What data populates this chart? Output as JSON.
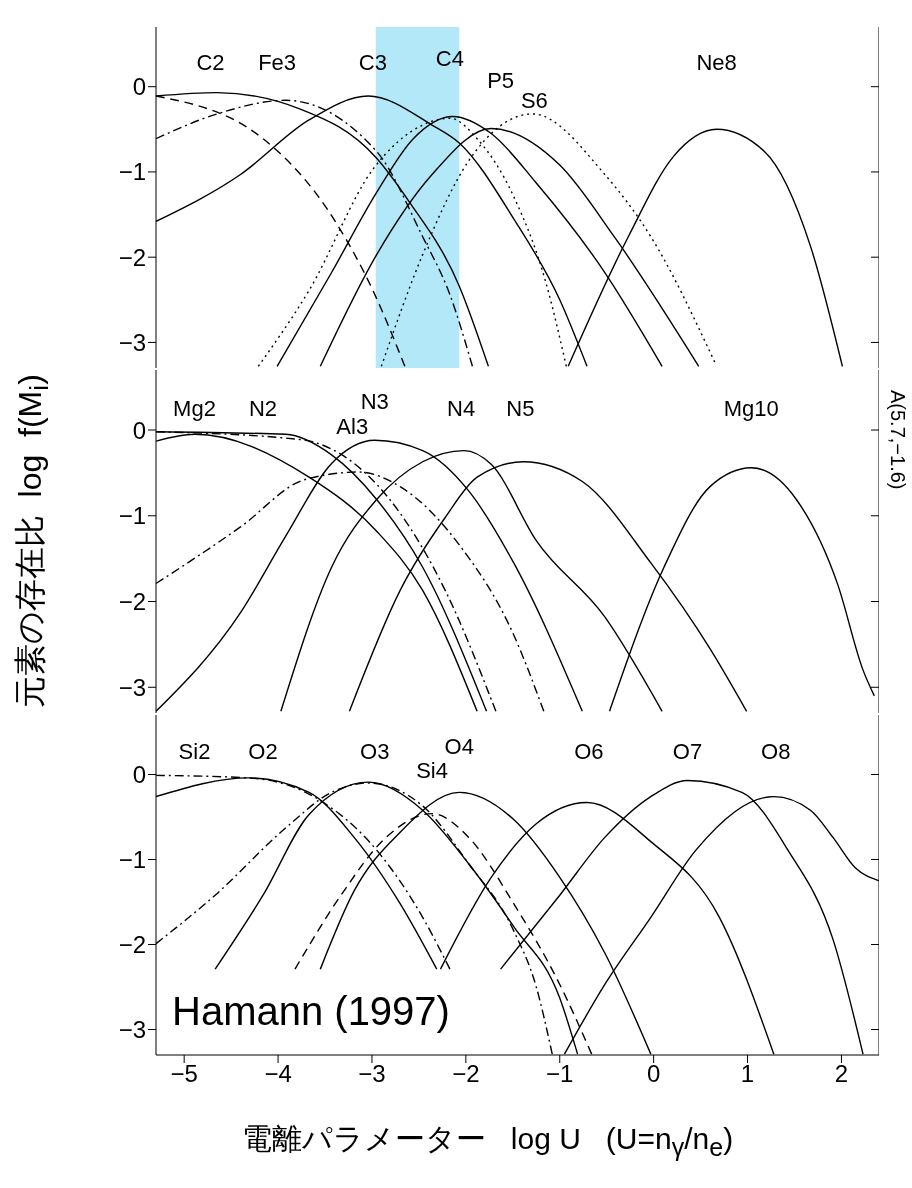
{
  "chart_data": [
    {
      "type": "line",
      "xlim": [
        -5.3,
        2.4
      ],
      "ylim": [
        -3.3,
        0.7
      ],
      "xticks": [
        -5,
        -4,
        -3,
        -2,
        -1,
        0,
        1,
        2
      ],
      "yticks": [
        -3,
        -2,
        -1,
        0
      ],
      "tick_labels": "y",
      "bands": [
        {
          "axis": "x",
          "from": -2.96,
          "to": -2.07,
          "color": "#b3e8f8"
        }
      ],
      "annotations": [
        "C2",
        "Fe3",
        "C3",
        "C4",
        "P5",
        "S6",
        "Ne8"
      ],
      "series": [
        {
          "color": "#000000",
          "line_style": "solid",
          "x": [
            -5.3,
            -4.65,
            -3.77,
            -2.95,
            -2.61,
            -2.07,
            -1.76
          ],
          "values": [
            -0.11,
            -0.07,
            -0.26,
            -0.84,
            -1.34,
            -2.34,
            -3.28
          ]
        },
        {
          "color": "#000000",
          "line_style": "dashed",
          "x": [
            -5.3,
            -4.16,
            -3.38,
            -2.99,
            -2.65
          ],
          "values": [
            -0.11,
            -0.61,
            -1.6,
            -2.39,
            -3.28
          ]
        },
        {
          "color": "#000000",
          "line_style": "dashdot",
          "x": [
            -5.3,
            -4.65,
            -3.92,
            -2.95,
            -2.46,
            -2.17,
            -1.93
          ],
          "values": [
            -0.61,
            -0.32,
            -0.16,
            -0.76,
            -1.76,
            -2.44,
            -3.28
          ]
        },
        {
          "color": "#000000",
          "line_style": "solid",
          "x": [
            -5.3,
            -4.4,
            -3.67,
            -3.04,
            -2.36,
            -2.07,
            -1.49,
            -1.0,
            -0.71
          ],
          "values": [
            -1.58,
            -1.03,
            -0.39,
            -0.11,
            -0.45,
            -0.66,
            -1.55,
            -2.5,
            -3.28
          ]
        },
        {
          "color": "#000000",
          "line_style": "dotted",
          "x": [
            -4.21,
            -3.67,
            -2.99,
            -2.46,
            -2.17,
            -1.88,
            -1.49,
            -1.15,
            -0.93
          ],
          "values": [
            -3.28,
            -2.39,
            -0.97,
            -0.45,
            -0.37,
            -0.61,
            -1.29,
            -2.29,
            -3.28
          ]
        },
        {
          "color": "#000000",
          "line_style": "solid",
          "x": [
            -4.01,
            -3.43,
            -2.95,
            -2.56,
            -2.14,
            -1.73,
            -1.25,
            -0.52,
            0.09
          ],
          "values": [
            -3.28,
            -2.18,
            -1.24,
            -0.61,
            -0.35,
            -0.55,
            -1.13,
            -2.18,
            -3.28
          ]
        },
        {
          "color": "#000000",
          "line_style": "solid",
          "x": [
            -3.55,
            -2.95,
            -2.36,
            -1.73,
            -1.0,
            -0.42,
            0.48
          ],
          "values": [
            -3.28,
            -1.97,
            -1.03,
            -0.49,
            -0.92,
            -1.76,
            -3.28
          ]
        },
        {
          "color": "#000000",
          "line_style": "dotted",
          "x": [
            -2.9,
            -2.46,
            -1.97,
            -1.29,
            -0.52,
            -0.03,
            0.65
          ],
          "values": [
            -3.28,
            -1.97,
            -0.87,
            -0.32,
            -1.03,
            -1.76,
            -3.23
          ]
        },
        {
          "color": "#000000",
          "line_style": "solid",
          "x": [
            -0.91,
            -0.27,
            0.21,
            0.67,
            1.18,
            1.67,
            2.01
          ],
          "values": [
            -3.28,
            -1.76,
            -0.82,
            -0.5,
            -0.76,
            -1.87,
            -3.28
          ]
        }
      ]
    },
    {
      "type": "line",
      "xlim": [
        -5.3,
        2.4
      ],
      "ylim": [
        -3.3,
        0.7
      ],
      "xticks": [
        -5,
        -4,
        -3,
        -2,
        -1,
        0,
        1,
        2
      ],
      "yticks": [
        -3,
        -2,
        -1,
        0
      ],
      "tick_labels": "y",
      "ylabel": "元素の存在比  log  f(M$_{i}$)",
      "annotations": [
        "Mg2",
        "N2",
        "N3",
        "Al3",
        "N4",
        "N5",
        "Mg10",
        "A(5.7,−1.6)"
      ],
      "series": [
        {
          "color": "#000000",
          "line_style": "solid",
          "x": [
            -5.3,
            -4.89,
            -3.67,
            -2.95,
            -2.46,
            -1.88
          ],
          "values": [
            -0.13,
            -0.05,
            -0.55,
            -1.18,
            -1.87,
            -3.28
          ]
        },
        {
          "color": "#000000",
          "line_style": "solid",
          "x": [
            -5.3,
            -3.92,
            -3.43,
            -2.95,
            -2.46,
            -1.78
          ],
          "values": [
            -0.02,
            -0.05,
            -0.29,
            -0.81,
            -1.6,
            -3.28
          ]
        },
        {
          "color": "#000000",
          "line_style": "dashdot",
          "x": [
            -5.3,
            -3.77,
            -3.19,
            -2.7,
            -2.22,
            -1.68
          ],
          "values": [
            -0.02,
            -0.11,
            -0.39,
            -0.97,
            -1.87,
            -3.28
          ]
        },
        {
          "color": "#000000",
          "line_style": "dashdot",
          "x": [
            -5.3,
            -4.4,
            -3.72,
            -3.14,
            -2.7,
            -2.07,
            -1.49,
            -1.17
          ],
          "values": [
            -1.79,
            -1.13,
            -0.58,
            -0.49,
            -0.66,
            -1.34,
            -2.39,
            -3.28
          ]
        },
        {
          "color": "#000000",
          "line_style": "solid",
          "x": [
            -5.3,
            -4.4,
            -3.92,
            -3.43,
            -2.97,
            -2.46,
            -1.97,
            -1.49,
            -0.76
          ],
          "values": [
            -3.28,
            -2.13,
            -1.24,
            -0.39,
            -0.12,
            -0.24,
            -0.71,
            -1.55,
            -3.28
          ]
        },
        {
          "color": "#000000",
          "line_style": "solid",
          "x": [
            -3.97,
            -3.43,
            -2.95,
            -2.46,
            -2.02,
            -1.73,
            -1.25,
            -0.52,
            0.09
          ],
          "values": [
            -3.28,
            -1.6,
            -0.81,
            -0.37,
            -0.24,
            -0.4,
            -1.29,
            -2.18,
            -3.28
          ]
        },
        {
          "color": "#000000",
          "line_style": "solid",
          "x": [
            -3.24,
            -2.7,
            -2.22,
            -1.88,
            -1.39,
            -0.76,
            -0.03,
            0.6,
            0.99
          ],
          "values": [
            -3.28,
            -1.87,
            -1.02,
            -0.55,
            -0.37,
            -0.6,
            -1.55,
            -2.55,
            -3.28
          ]
        },
        {
          "color": "#000000",
          "line_style": "solid",
          "x": [
            -0.47,
            0.11,
            0.6,
            1.04,
            1.52,
            1.96,
            2.23,
            2.35
          ],
          "values": [
            -3.28,
            -1.6,
            -0.66,
            -0.44,
            -0.81,
            -1.8,
            -2.8,
            -3.1
          ]
        }
      ]
    },
    {
      "type": "line",
      "xlim": [
        -5.3,
        2.4
      ],
      "ylim": [
        -3.3,
        0.7
      ],
      "xticks": [
        -5,
        -4,
        -3,
        -2,
        -1,
        0,
        1,
        2
      ],
      "yticks": [
        -3,
        -2,
        -1,
        0
      ],
      "xlabel": "電離パラメーター   log U   (U=n$_{γ}$/n$_{e}$)",
      "annotations": [
        "Si2",
        "O2",
        "O3",
        "O4",
        "Si4",
        "O6",
        "O7",
        "O8",
        "Hamann (1997)"
      ],
      "series": [
        {
          "color": "#000000",
          "line_style": "dashdot",
          "x": [
            -5.3,
            -4.31,
            -3.53,
            -2.95,
            -2.46,
            -2.17
          ],
          "values": [
            -0.01,
            -0.04,
            -0.32,
            -0.89,
            -1.68,
            -2.29
          ]
        },
        {
          "color": "#000000",
          "line_style": "solid",
          "x": [
            -5.3,
            -4.31,
            -3.67,
            -3.19,
            -2.7,
            -2.31
          ],
          "values": [
            -0.26,
            -0.04,
            -0.21,
            -0.74,
            -1.52,
            -2.29
          ]
        },
        {
          "color": "#000000",
          "line_style": "dashdot",
          "x": [
            -5.3,
            -4.67,
            -3.92,
            -3.43,
            -3.04,
            -2.46,
            -1.97,
            -1.49,
            -1.25,
            -1.08
          ],
          "values": [
            -1.99,
            -1.42,
            -0.63,
            -0.21,
            -0.1,
            -0.37,
            -1.05,
            -1.84,
            -2.5,
            -3.29
          ]
        },
        {
          "color": "#000000",
          "line_style": "solid",
          "x": [
            -4.67,
            -4.16,
            -3.67,
            -3.04,
            -2.46,
            -1.97,
            -1.49,
            -1.0,
            -0.81
          ],
          "values": [
            -2.29,
            -1.42,
            -0.47,
            -0.09,
            -0.42,
            -1.05,
            -1.79,
            -2.63,
            -3.29
          ]
        },
        {
          "color": "#000000",
          "line_style": "dashed",
          "x": [
            -3.82,
            -3.33,
            -2.85,
            -2.36,
            -1.97,
            -1.49,
            -1.0,
            -0.66
          ],
          "values": [
            -2.29,
            -1.42,
            -0.74,
            -0.46,
            -0.74,
            -1.52,
            -2.47,
            -3.29
          ]
        },
        {
          "color": "#000000",
          "line_style": "solid",
          "x": [
            -3.55,
            -3.19,
            -2.7,
            -2.07,
            -1.49,
            -1.0,
            -0.52,
            -0.03
          ],
          "values": [
            -2.29,
            -1.37,
            -0.68,
            -0.21,
            -0.53,
            -1.21,
            -2.1,
            -3.29
          ]
        },
        {
          "color": "#000000",
          "line_style": "solid",
          "x": [
            -2.27,
            -1.73,
            -1.25,
            -0.71,
            -0.03,
            0.7,
            1.28
          ],
          "values": [
            -2.29,
            -1.21,
            -0.58,
            -0.33,
            -0.79,
            -1.68,
            -3.29
          ]
        },
        {
          "color": "#000000",
          "line_style": "solid",
          "x": [
            -1.63,
            -1.0,
            -0.52,
            -0.03,
            0.36,
            0.94,
            1.43,
            1.91,
            2.23
          ],
          "values": [
            -2.29,
            -1.42,
            -0.74,
            -0.26,
            -0.07,
            -0.21,
            -0.89,
            -1.94,
            -3.29
          ]
        },
        {
          "color": "#000000",
          "line_style": "solid",
          "x": [
            -0.95,
            -0.52,
            -0.03,
            0.45,
            1.28,
            1.67,
            1.91,
            2.15,
            2.4
          ],
          "values": [
            -3.29,
            -2.47,
            -1.68,
            -0.89,
            -0.26,
            -0.42,
            -0.74,
            -1.1,
            -1.25
          ]
        }
      ]
    }
  ]
}
